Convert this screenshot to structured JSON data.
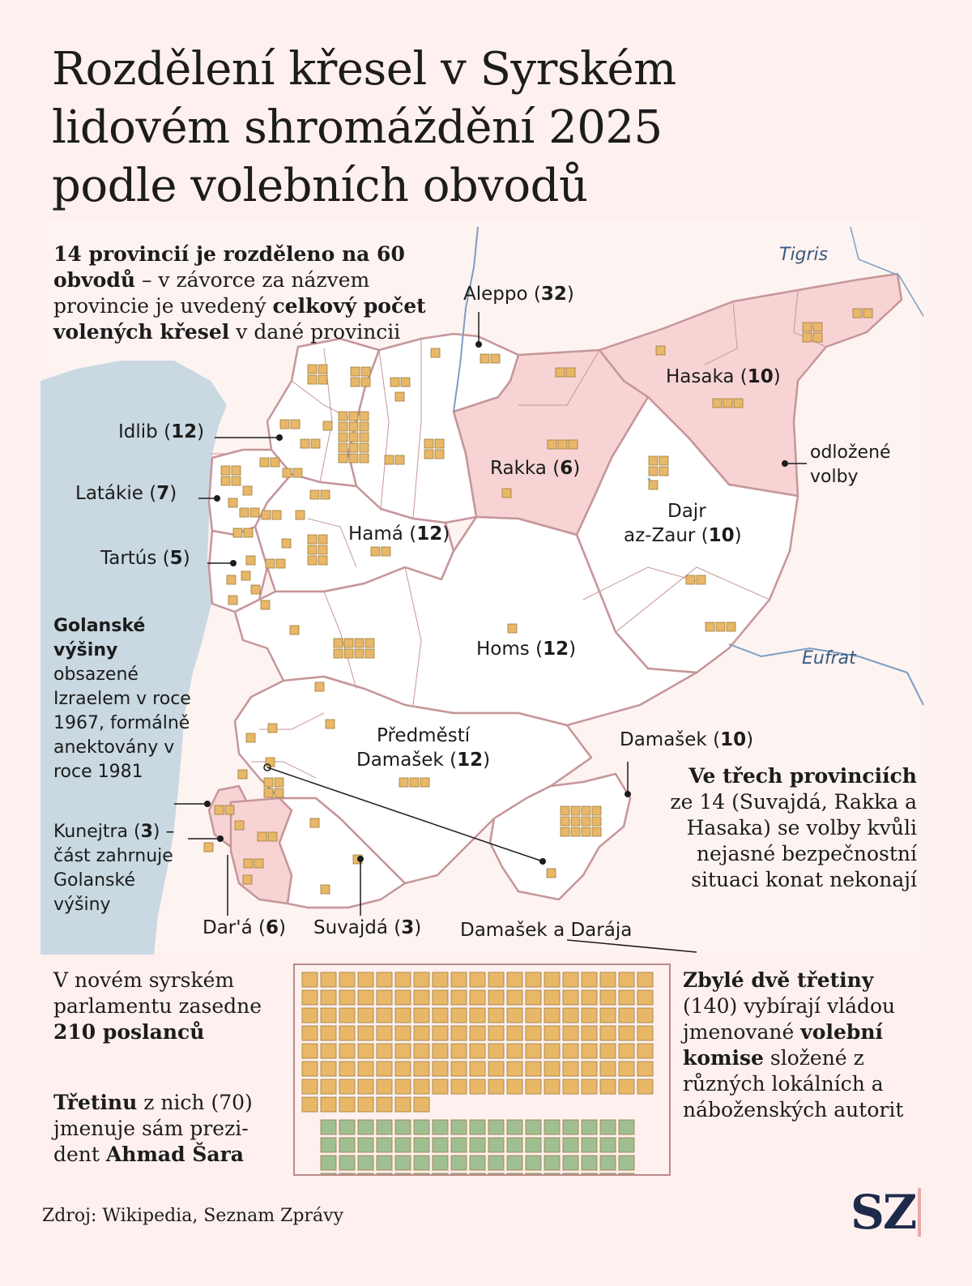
{
  "title_lines": [
    "Rozdělení křesel v Syrském",
    "lidovém shromáždění 2025",
    "podle volebních obvodů"
  ],
  "intro": {
    "bold1": "14 provincií je rozděleno na 60 obvodů",
    "text1": " – v závorce za názvem provincie je uvedený ",
    "bold2": "celkový počet volených křesel",
    "text2": " v dané provincii"
  },
  "rivers": {
    "tigris": "Tigris",
    "eufrat": "Eufrat"
  },
  "provinces": [
    {
      "name": "Aleppo",
      "seats": 32,
      "postponed": false
    },
    {
      "name": "Hasaka",
      "seats": 10,
      "postponed": true
    },
    {
      "name": "Idlib",
      "seats": 12,
      "postponed": false
    },
    {
      "name": "Rakka",
      "seats": 6,
      "postponed": true
    },
    {
      "name": "Latákie",
      "seats": 7,
      "postponed": false
    },
    {
      "name": "Hamá",
      "seats": 12,
      "postponed": false
    },
    {
      "name": "Tartús",
      "seats": 5,
      "postponed": false
    },
    {
      "name": "Dajr",
      "name2": "az-Zaur",
      "seats": 10,
      "postponed": false
    },
    {
      "name": "Homs",
      "seats": 12,
      "postponed": false
    },
    {
      "name": "Předměstí",
      "name2": "Damašek",
      "seats": 12,
      "postponed": false
    },
    {
      "name": "Damašek",
      "seats": 10,
      "postponed": false
    },
    {
      "name": "Kunejtra",
      "seats": 3,
      "postponed": false
    },
    {
      "name": "Dar'á",
      "seats": 6,
      "postponed": false
    },
    {
      "name": "Suvajdá",
      "seats": 3,
      "postponed": true
    }
  ],
  "callouts": {
    "postponed": "odložené volby",
    "damascus_daraja": "Damašek a Darája"
  },
  "golan": {
    "bold": "Golanské výšiny",
    "text": "obsazené Izraelem v roce 1967, formálně anektovány v roce 1981"
  },
  "kunejtra_note": {
    "name": "Kunejtra",
    "seats": "3",
    "text": "– část zahrnuje Golanské výšiny"
  },
  "three_provinces": {
    "bold": "Ve třech provinciích",
    "text": "ze 14 (Suvajdá, Rakka a Hasaka) se volby kvůli nejasné bezpečnostní situaci konat nekonají"
  },
  "parliament": {
    "text1": "V novém syrském parlamentu zasedne ",
    "bold1": "210 poslanců",
    "bold2": "Třetinu",
    "text2": " z nich (70) jmenuje sám prezi- dent ",
    "bold3": "Ahmad Šara",
    "right_bold": "Zbylé dvě třetiny",
    "right_text1": " (140) vybírají vládou jmenované ",
    "right_bold2": "volební komise",
    "right_text2": " složené z různých lokálních a náboženských autorit",
    "total_seats": 210,
    "commission_seats": 140,
    "president_seats": 70
  },
  "colors": {
    "background": "#fdf0ee",
    "sea": "#c9d8e1",
    "province_fill": "#ffffff",
    "postponed_fill": "#f7d3d3",
    "border": "#c6969a",
    "seat_commission": "#e8b868",
    "seat_president": "#9fbf92",
    "seat_stroke": "#9b7a3c"
  },
  "source": "Zdroj: Wikipedia, Seznam Zprávy",
  "logo": "SZ"
}
